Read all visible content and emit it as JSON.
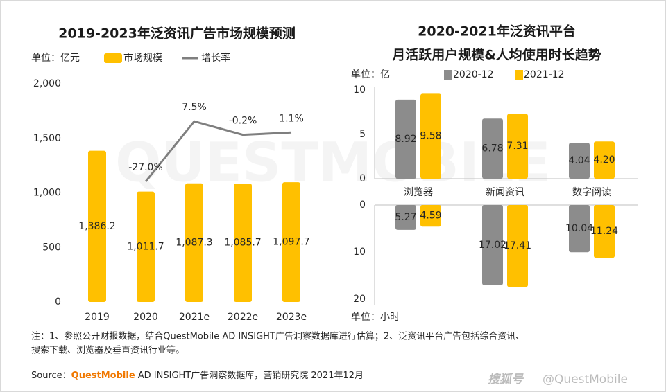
{
  "chart_data": [
    {
      "type": "bar-line",
      "title": "2019-2023年泛资讯广告市场规模预测",
      "unit": "单位：亿元",
      "categories": [
        "2019",
        "2020",
        "2021e",
        "2022e",
        "2023e"
      ],
      "ylim": [
        0,
        2000
      ],
      "yticks": [
        {
          "value": 2000,
          "label": "2,000"
        },
        {
          "value": 1500,
          "label": "1,500"
        },
        {
          "value": 1000,
          "label": "1,000"
        },
        500,
        0
      ],
      "y2lim": [
        -96,
        29
      ],
      "series": [
        {
          "name": "市场规模",
          "type": "bar",
          "color": "#FFC000",
          "values": [
            1386.2,
            1011.7,
            1087.3,
            1085.7,
            1097.7
          ],
          "value_labels": [
            "1,386.2",
            "1,011.7",
            "1,087.3",
            "1,085.7",
            "1,097.7"
          ]
        },
        {
          "name": "增长率",
          "type": "line",
          "axis": "y2",
          "color": "#7f7f7f",
          "values": [
            null,
            -27.0,
            7.5,
            -0.2,
            1.1
          ],
          "value_labels": [
            null,
            "-27.0%",
            "7.5%",
            "-0.2%",
            "1.1%"
          ]
        }
      ]
    },
    {
      "type": "diverging-bar",
      "title": "2020-2021年泛资讯平台",
      "subtitle": "月活跃用户规模&人均使用时长趋势",
      "categories": [
        "浏览器",
        "新闻资讯",
        "数字阅读"
      ],
      "unit": "单位：亿",
      "ylim": [
        0,
        10
      ],
      "yticks": [
        0,
        5,
        10
      ],
      "series": [
        {
          "name": "2020-12",
          "color": "#8c8c8c",
          "values": [
            8.92,
            6.78,
            4.04
          ]
        },
        {
          "name": "2021-12",
          "color": "#FFC000",
          "values": [
            9.58,
            7.31,
            4.2
          ],
          "value_labels": [
            "9.58",
            "7.31",
            "4.20"
          ]
        }
      ],
      "bottom": {
        "unit": "单位：小时",
        "ylim": [
          0,
          20
        ],
        "yticks": [
          0,
          10,
          20
        ],
        "series": [
          {
            "values": [
              5.27,
              17.02,
              10.04
            ]
          },
          {
            "values": [
              4.59,
              17.41,
              11.24
            ]
          }
        ]
      }
    }
  ],
  "notes": [
    "注：1、参照公开财报数据，结合QuestMobile AD INSIGHT广告洞察数据库进行估算；2、泛资讯平台广告包括综合资讯、",
    "搜索下载、浏览器及垂直资讯行业等。"
  ],
  "source": {
    "prefix": "Source：",
    "brand": "QuestMobile",
    "rest": " AD INSIGHT广告洞察数据库，营销研究院 2021年12月"
  },
  "watermark": "QUESTMOBILE",
  "footer": {
    "platform": "搜狐号",
    "account": "@QuestMobile"
  }
}
